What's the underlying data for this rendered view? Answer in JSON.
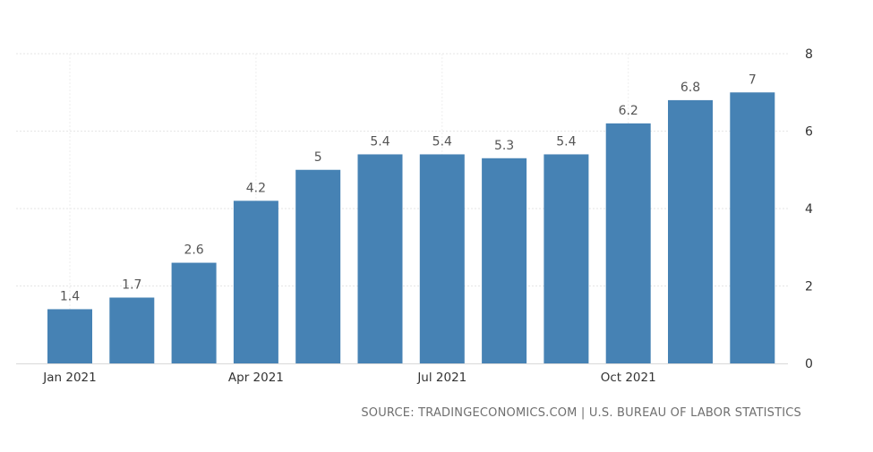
{
  "chart_data": {
    "type": "bar",
    "title": "",
    "xlabel": "",
    "ylabel": "",
    "categories": [
      "Jan 2021",
      "Feb 2021",
      "Mar 2021",
      "Apr 2021",
      "May 2021",
      "Jun 2021",
      "Jul 2021",
      "Aug 2021",
      "Sep 2021",
      "Oct 2021",
      "Nov 2021",
      "Dec 2021"
    ],
    "values": [
      1.4,
      1.7,
      2.6,
      4.2,
      5,
      5.4,
      5.4,
      5.3,
      5.4,
      6.2,
      6.8,
      7
    ],
    "data_labels": [
      "1.4",
      "1.7",
      "2.6",
      "4.2",
      "5",
      "5.4",
      "5.4",
      "5.3",
      "5.4",
      "6.2",
      "6.8",
      "7"
    ],
    "x_tick_labels": [
      {
        "index": 0,
        "label": "Jan 2021"
      },
      {
        "index": 3,
        "label": "Apr 2021"
      },
      {
        "index": 6,
        "label": "Jul 2021"
      },
      {
        "index": 9,
        "label": "Oct 2021"
      }
    ],
    "y_ticks": [
      0,
      2,
      4,
      6,
      8
    ],
    "ylim": [
      0,
      8
    ],
    "y_axis_position": "right",
    "grid": true,
    "bar_color": "#4682b4"
  },
  "source": "SOURCE: TRADINGECONOMICS.COM | U.S. BUREAU OF LABOR STATISTICS"
}
